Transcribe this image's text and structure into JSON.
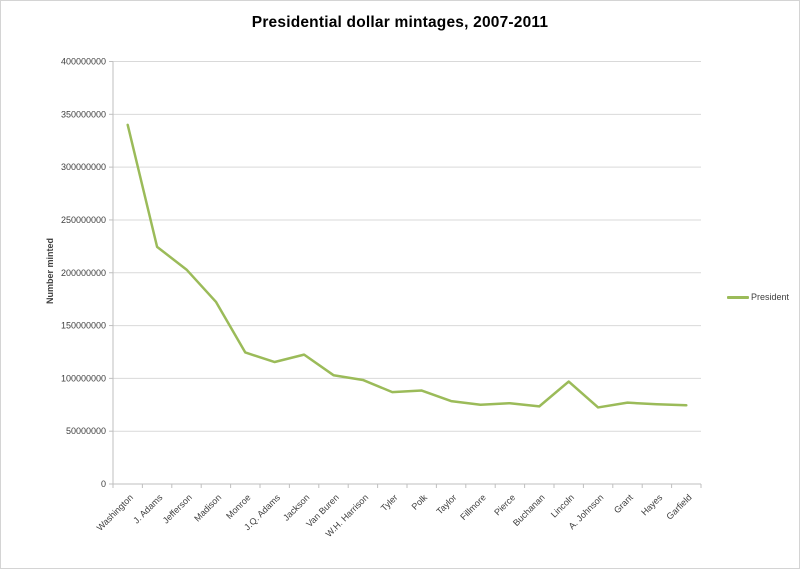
{
  "chart_data": {
    "type": "line",
    "title": "Presidential dollar mintages, 2007-2011",
    "xlabel": "",
    "ylabel": "Number minted",
    "categories": [
      "Washington",
      "J. Adams",
      "Jefferson",
      "Madison",
      "Monroe",
      "J.Q. Adams",
      "Jackson",
      "Van Buren",
      "W.H. Harrison",
      "Tyler",
      "Polk",
      "Taylor",
      "Fillmore",
      "Pierce",
      "Buchanan",
      "Lincoln",
      "A. Johnson",
      "Grant",
      "Hayes",
      "Garfield"
    ],
    "series": [
      {
        "name": "President",
        "color": "#9bbb59",
        "values": [
          340000000,
          224500000,
          203000000,
          172500000,
          124500000,
          115500000,
          122500000,
          103000000,
          98500000,
          87000000,
          88500000,
          78500000,
          75000000,
          76500000,
          73500000,
          97000000,
          72500000,
          77000000,
          75500000,
          74500000
        ]
      }
    ],
    "y_axis": {
      "min": 0,
      "max": 400000000,
      "step": 50000000,
      "tick_labels": [
        "0",
        "50000000",
        "100000000",
        "150000000",
        "200000000",
        "250000000",
        "300000000",
        "350000000",
        "400000000"
      ]
    },
    "grid": "horizontal-only",
    "legend_position": "right-middle"
  },
  "style": {
    "line_color": "#9bbb59",
    "grid_color": "#d9d9d9",
    "axis_color": "#bfbfbf",
    "tick_label_color": "#3f3f3f",
    "title_color": "#000000",
    "background": "#ffffff",
    "frame_border": "#d4d4d4"
  }
}
